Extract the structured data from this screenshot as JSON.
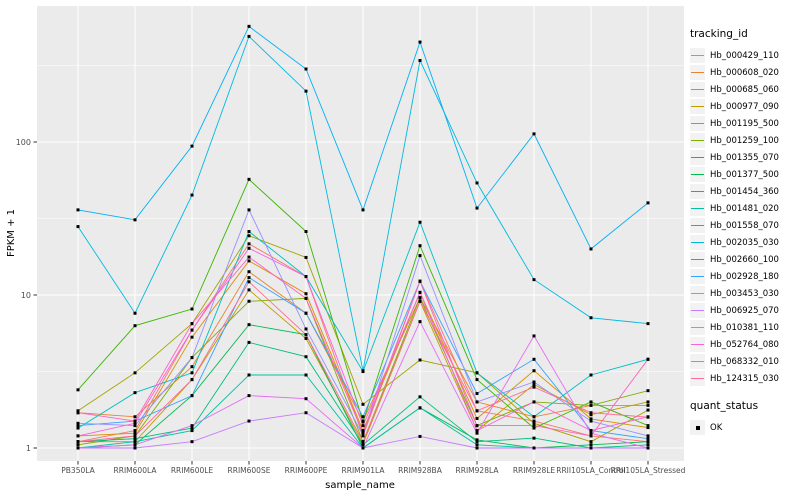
{
  "chart_data": {
    "type": "line",
    "x_type": "categorical",
    "y_scale": "log10",
    "title": "",
    "xlabel": "sample_name",
    "ylabel": "FPKM + 1",
    "legend_title": "tracking_id",
    "legend_position": "right",
    "grid": true,
    "panel_background": "#EBEBEB",
    "grid_color": "#FFFFFF",
    "tick_color": "#333333",
    "tick_label_color": "#4D4D4D",
    "marker": {
      "shape": "square",
      "color": "#000000",
      "size": 3
    },
    "categories": [
      "PB350LA",
      "RRIM600LA",
      "RRIM600LE",
      "RRIM600SE",
      "RRIM600PE",
      "RRIM901LA",
      "RRIM928BA",
      "RRIM928LA",
      "RRIM928LE",
      "RRII105LA_Control",
      "RRII105LA_Stressed"
    ],
    "y_tick_labels": [
      "1",
      "10",
      "100"
    ],
    "y_major_ticks": [
      1,
      10,
      100
    ],
    "y_minor_ticks": [
      3.1623,
      31.623,
      316.23
    ],
    "ylim": [
      0.82,
      790
    ],
    "quant_status": {
      "title": "quant_status",
      "items": [
        {
          "label": "OK"
        }
      ]
    },
    "series": [
      {
        "name": "Hb_000429_110",
        "color": "#F8766D",
        "values": [
          1.1,
          1.3,
          5.9,
          21.6,
          13.2,
          1.2,
          12.3,
          1.75,
          1.5,
          1.2,
          1.1
        ]
      },
      {
        "name": "Hb_000608_020",
        "color": "#EA8331",
        "values": [
          1.7,
          1.6,
          3.4,
          14.2,
          7.6,
          1.5,
          9.6,
          2.0,
          1.6,
          1.9,
          1.9
        ]
      },
      {
        "name": "Hb_000685_060",
        "color": "#D89000",
        "values": [
          1.2,
          1.25,
          5.3,
          16.7,
          10.2,
          1.3,
          10.4,
          1.56,
          3.2,
          1.55,
          1.36
        ]
      },
      {
        "name": "Hb_000977_090",
        "color": "#C09B00",
        "values": [
          1.1,
          1.1,
          2.8,
          10.8,
          5.2,
          1.06,
          9.1,
          1.3,
          2.6,
          1.65,
          2.0
        ]
      },
      {
        "name": "Hb_001195_500",
        "color": "#A3A500",
        "values": [
          1.75,
          3.1,
          6.5,
          24.4,
          17.6,
          1.93,
          3.76,
          3.1,
          1.45,
          1.1,
          1.77
        ]
      },
      {
        "name": "Hb_001259_100",
        "color": "#7CAE00",
        "values": [
          1.05,
          1.2,
          3.9,
          9.1,
          9.5,
          1.1,
          9.6,
          1.4,
          2.0,
          1.9,
          2.37
        ]
      },
      {
        "name": "Hb_001355_070",
        "color": "#39B600",
        "values": [
          2.4,
          6.3,
          8.1,
          57,
          26,
          1.48,
          21,
          2.8,
          1.35,
          2.0,
          1.4
        ]
      },
      {
        "name": "Hb_001377_500",
        "color": "#00BB4E",
        "values": [
          1.0,
          1.05,
          2.2,
          6.4,
          5.5,
          1.0,
          1.83,
          1.13,
          1.0,
          1.05,
          1.1
        ]
      },
      {
        "name": "Hb_001454_360",
        "color": "#00BF7D",
        "values": [
          1.1,
          1.15,
          1.35,
          4.9,
          3.95,
          1.05,
          2.16,
          1.1,
          1.16,
          1.0,
          1.05
        ]
      },
      {
        "name": "Hb_001481_020",
        "color": "#00C1A3",
        "values": [
          1.0,
          1.1,
          1.3,
          3.0,
          3.0,
          1.0,
          1.83,
          1.05,
          1.0,
          1.0,
          1.0
        ]
      },
      {
        "name": "Hb_001558_070",
        "color": "#00BFC4",
        "values": [
          1.35,
          2.3,
          3.1,
          26,
          13.2,
          3.16,
          29.9,
          3.1,
          1.6,
          3.0,
          3.8
        ]
      },
      {
        "name": "Hb_002035_030",
        "color": "#00BAE0",
        "values": [
          28,
          7.6,
          45,
          490,
          215,
          3.2,
          341,
          54,
          12.6,
          7.1,
          6.5
        ]
      },
      {
        "name": "Hb_002660_100",
        "color": "#00B0F6",
        "values": [
          36,
          31,
          94,
          570,
          300,
          36,
          450,
          37,
          113,
          20,
          40
        ]
      },
      {
        "name": "Hb_002928_180",
        "color": "#35A2FF",
        "values": [
          1.4,
          1.5,
          2.2,
          13,
          7.6,
          1.6,
          12.3,
          2.27,
          3.8,
          1.3,
          1.15
        ]
      },
      {
        "name": "Hb_003453_030",
        "color": "#9590FF",
        "values": [
          1.45,
          1.4,
          3.9,
          36,
          6.0,
          1.21,
          18.1,
          2.0,
          2.7,
          1.5,
          1.2
        ]
      },
      {
        "name": "Hb_006925_070",
        "color": "#C77CFF",
        "values": [
          1.0,
          1.0,
          1.1,
          1.5,
          1.7,
          1.0,
          1.19,
          1.0,
          1.0,
          1.0,
          1.0
        ]
      },
      {
        "name": "Hb_010381_110",
        "color": "#E76BF3",
        "values": [
          1.0,
          1.05,
          1.4,
          2.2,
          2.1,
          1.0,
          6.7,
          1.25,
          5.4,
          1.25,
          1.0
        ]
      },
      {
        "name": "Hb_052764_080",
        "color": "#FA62DB",
        "values": [
          1.2,
          1.45,
          5.9,
          20.2,
          13.2,
          1.4,
          10.4,
          1.3,
          2.0,
          1.3,
          1.6
        ]
      },
      {
        "name": "Hb_068332_010",
        "color": "#FF62BC",
        "values": [
          1.7,
          1.5,
          6.5,
          17.7,
          9.5,
          1.25,
          12.3,
          1.4,
          1.4,
          1.2,
          3.8
        ]
      },
      {
        "name": "Hb_124315_030",
        "color": "#FF6A98",
        "values": [
          1.1,
          1.2,
          2.8,
          12.2,
          5.5,
          1.1,
          9.1,
          1.75,
          2.5,
          1.7,
          1.59
        ]
      }
    ]
  }
}
